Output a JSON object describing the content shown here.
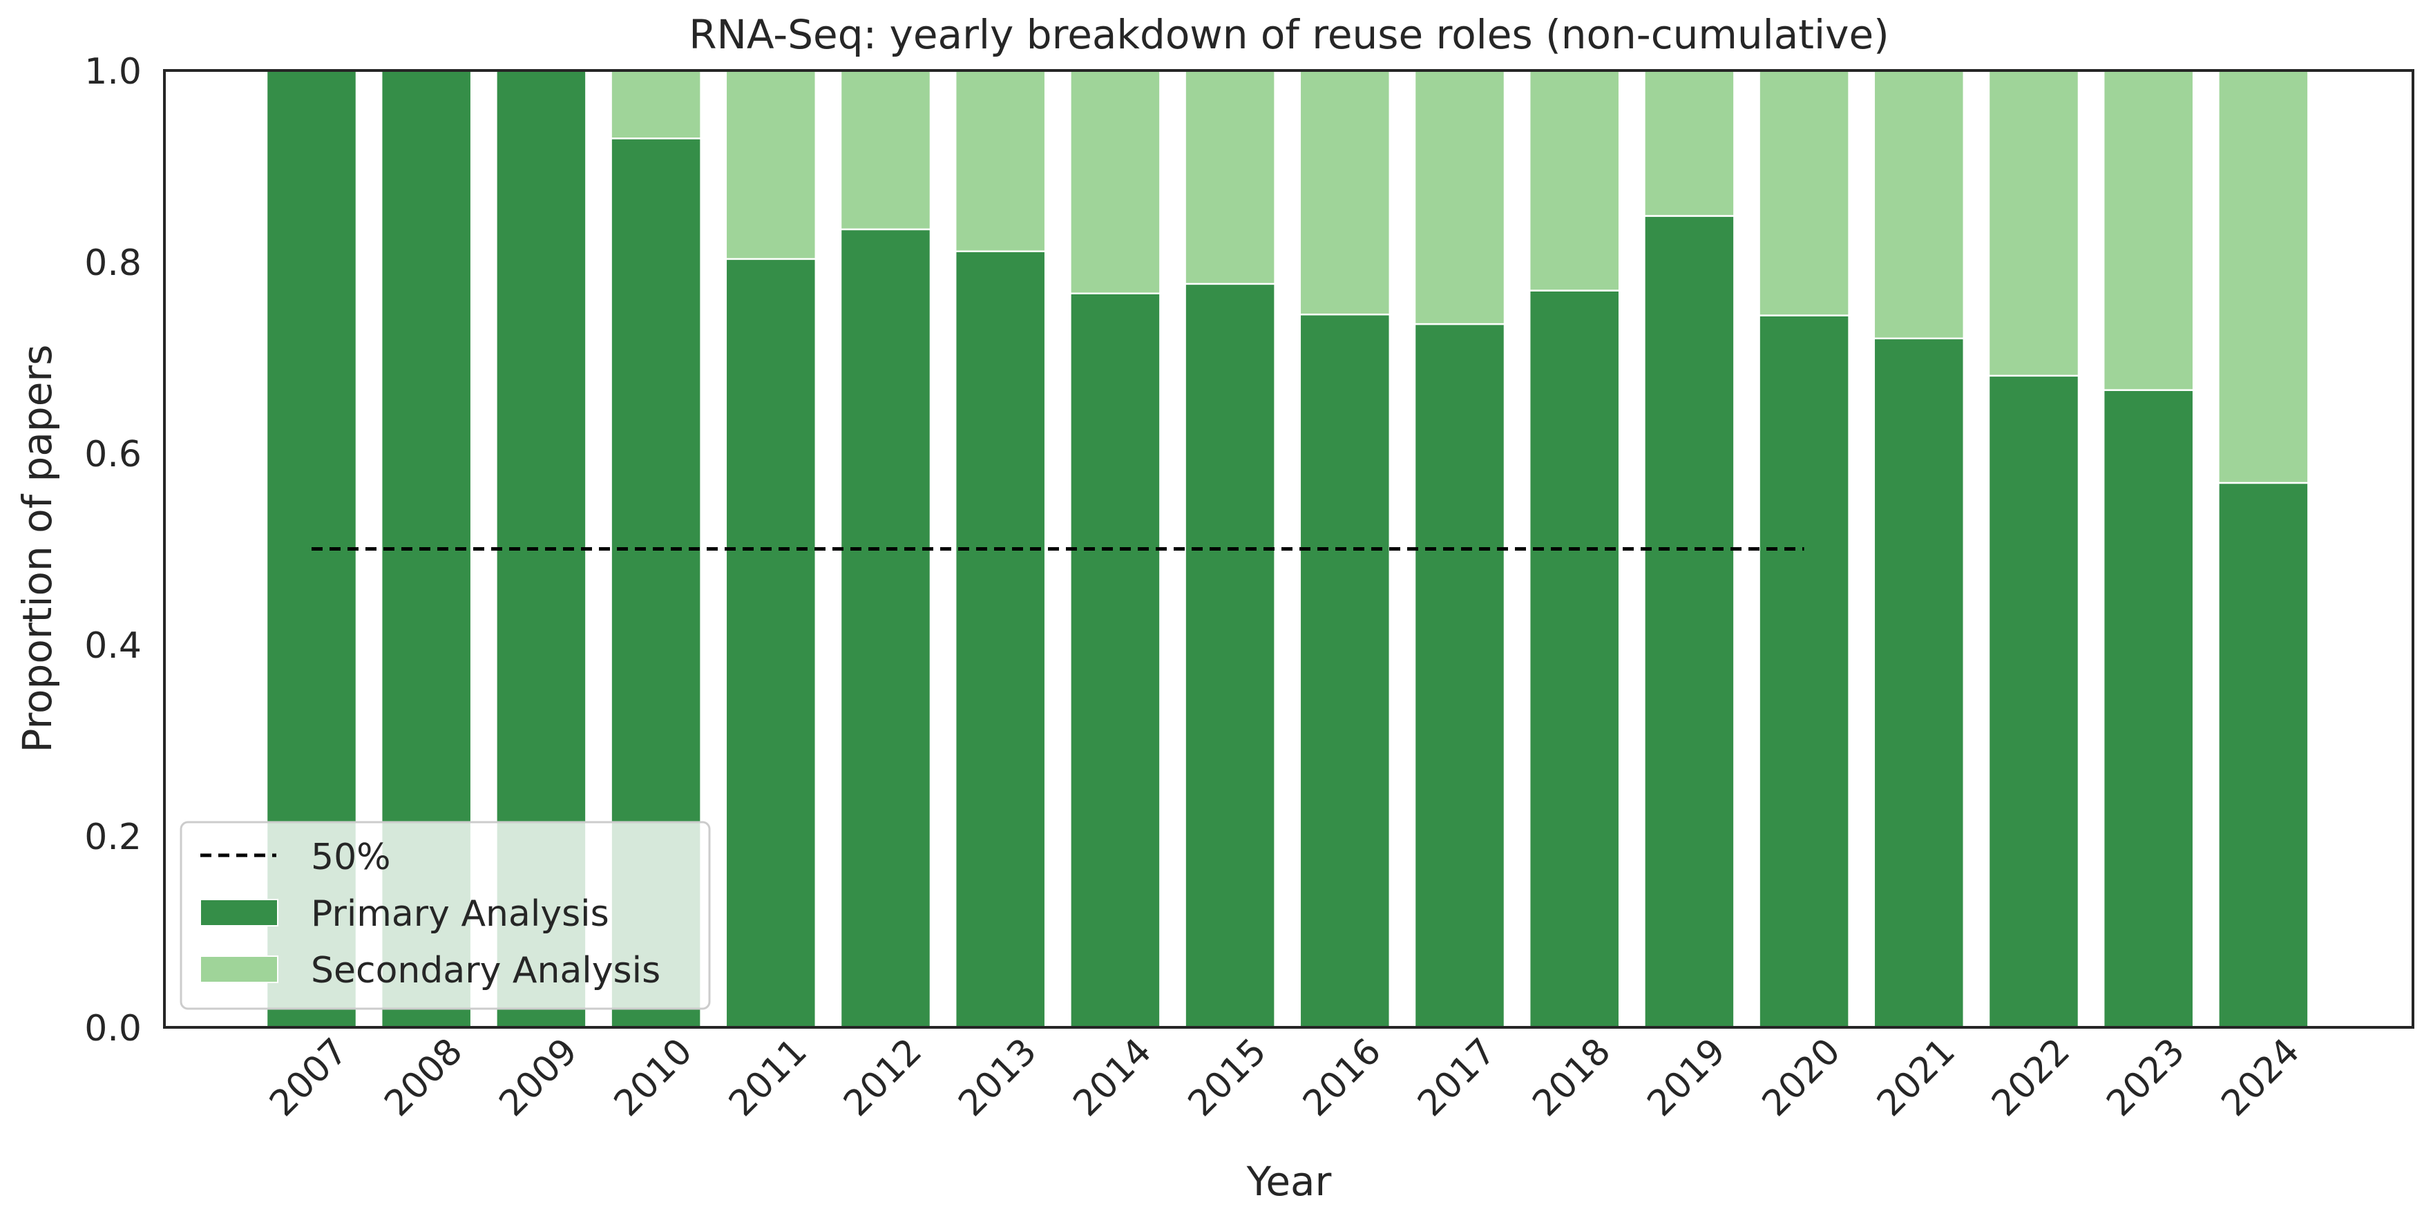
{
  "chart_data": {
    "type": "bar",
    "stacked": true,
    "title": "RNA-Seq: yearly breakdown of reuse roles (non-cumulative)",
    "xlabel": "Year",
    "ylabel": "Proportion of papers",
    "categories": [
      "2007",
      "2008",
      "2009",
      "2010",
      "2011",
      "2012",
      "2013",
      "2014",
      "2015",
      "2016",
      "2017",
      "2018",
      "2019",
      "2020",
      "2021",
      "2022",
      "2023",
      "2024"
    ],
    "series": [
      {
        "name": "Primary Analysis",
        "color": "#358e48",
        "values": [
          1.0,
          1.0,
          1.0,
          0.929,
          0.803,
          0.834,
          0.811,
          0.767,
          0.777,
          0.745,
          0.735,
          0.77,
          0.848,
          0.744,
          0.72,
          0.681,
          0.666,
          0.569
        ]
      },
      {
        "name": "Secondary Analysis",
        "color": "#9fd499",
        "values": [
          0.0,
          0.0,
          0.0,
          0.071,
          0.197,
          0.166,
          0.189,
          0.233,
          0.223,
          0.255,
          0.265,
          0.23,
          0.152,
          0.256,
          0.28,
          0.319,
          0.334,
          0.431
        ]
      }
    ],
    "reference_line": {
      "name": "50%",
      "y": 0.5,
      "x_from": "2007",
      "x_to": "2020",
      "style": "dashed",
      "color": "#000000"
    },
    "ylim": [
      0,
      1.0
    ],
    "yticks": [
      "0.0",
      "0.2",
      "0.4",
      "0.6",
      "0.8",
      "1.0"
    ],
    "grid": false,
    "legend": {
      "placement": "lower-left",
      "entries": [
        "50%",
        "Primary Analysis",
        "Secondary Analysis"
      ]
    }
  }
}
